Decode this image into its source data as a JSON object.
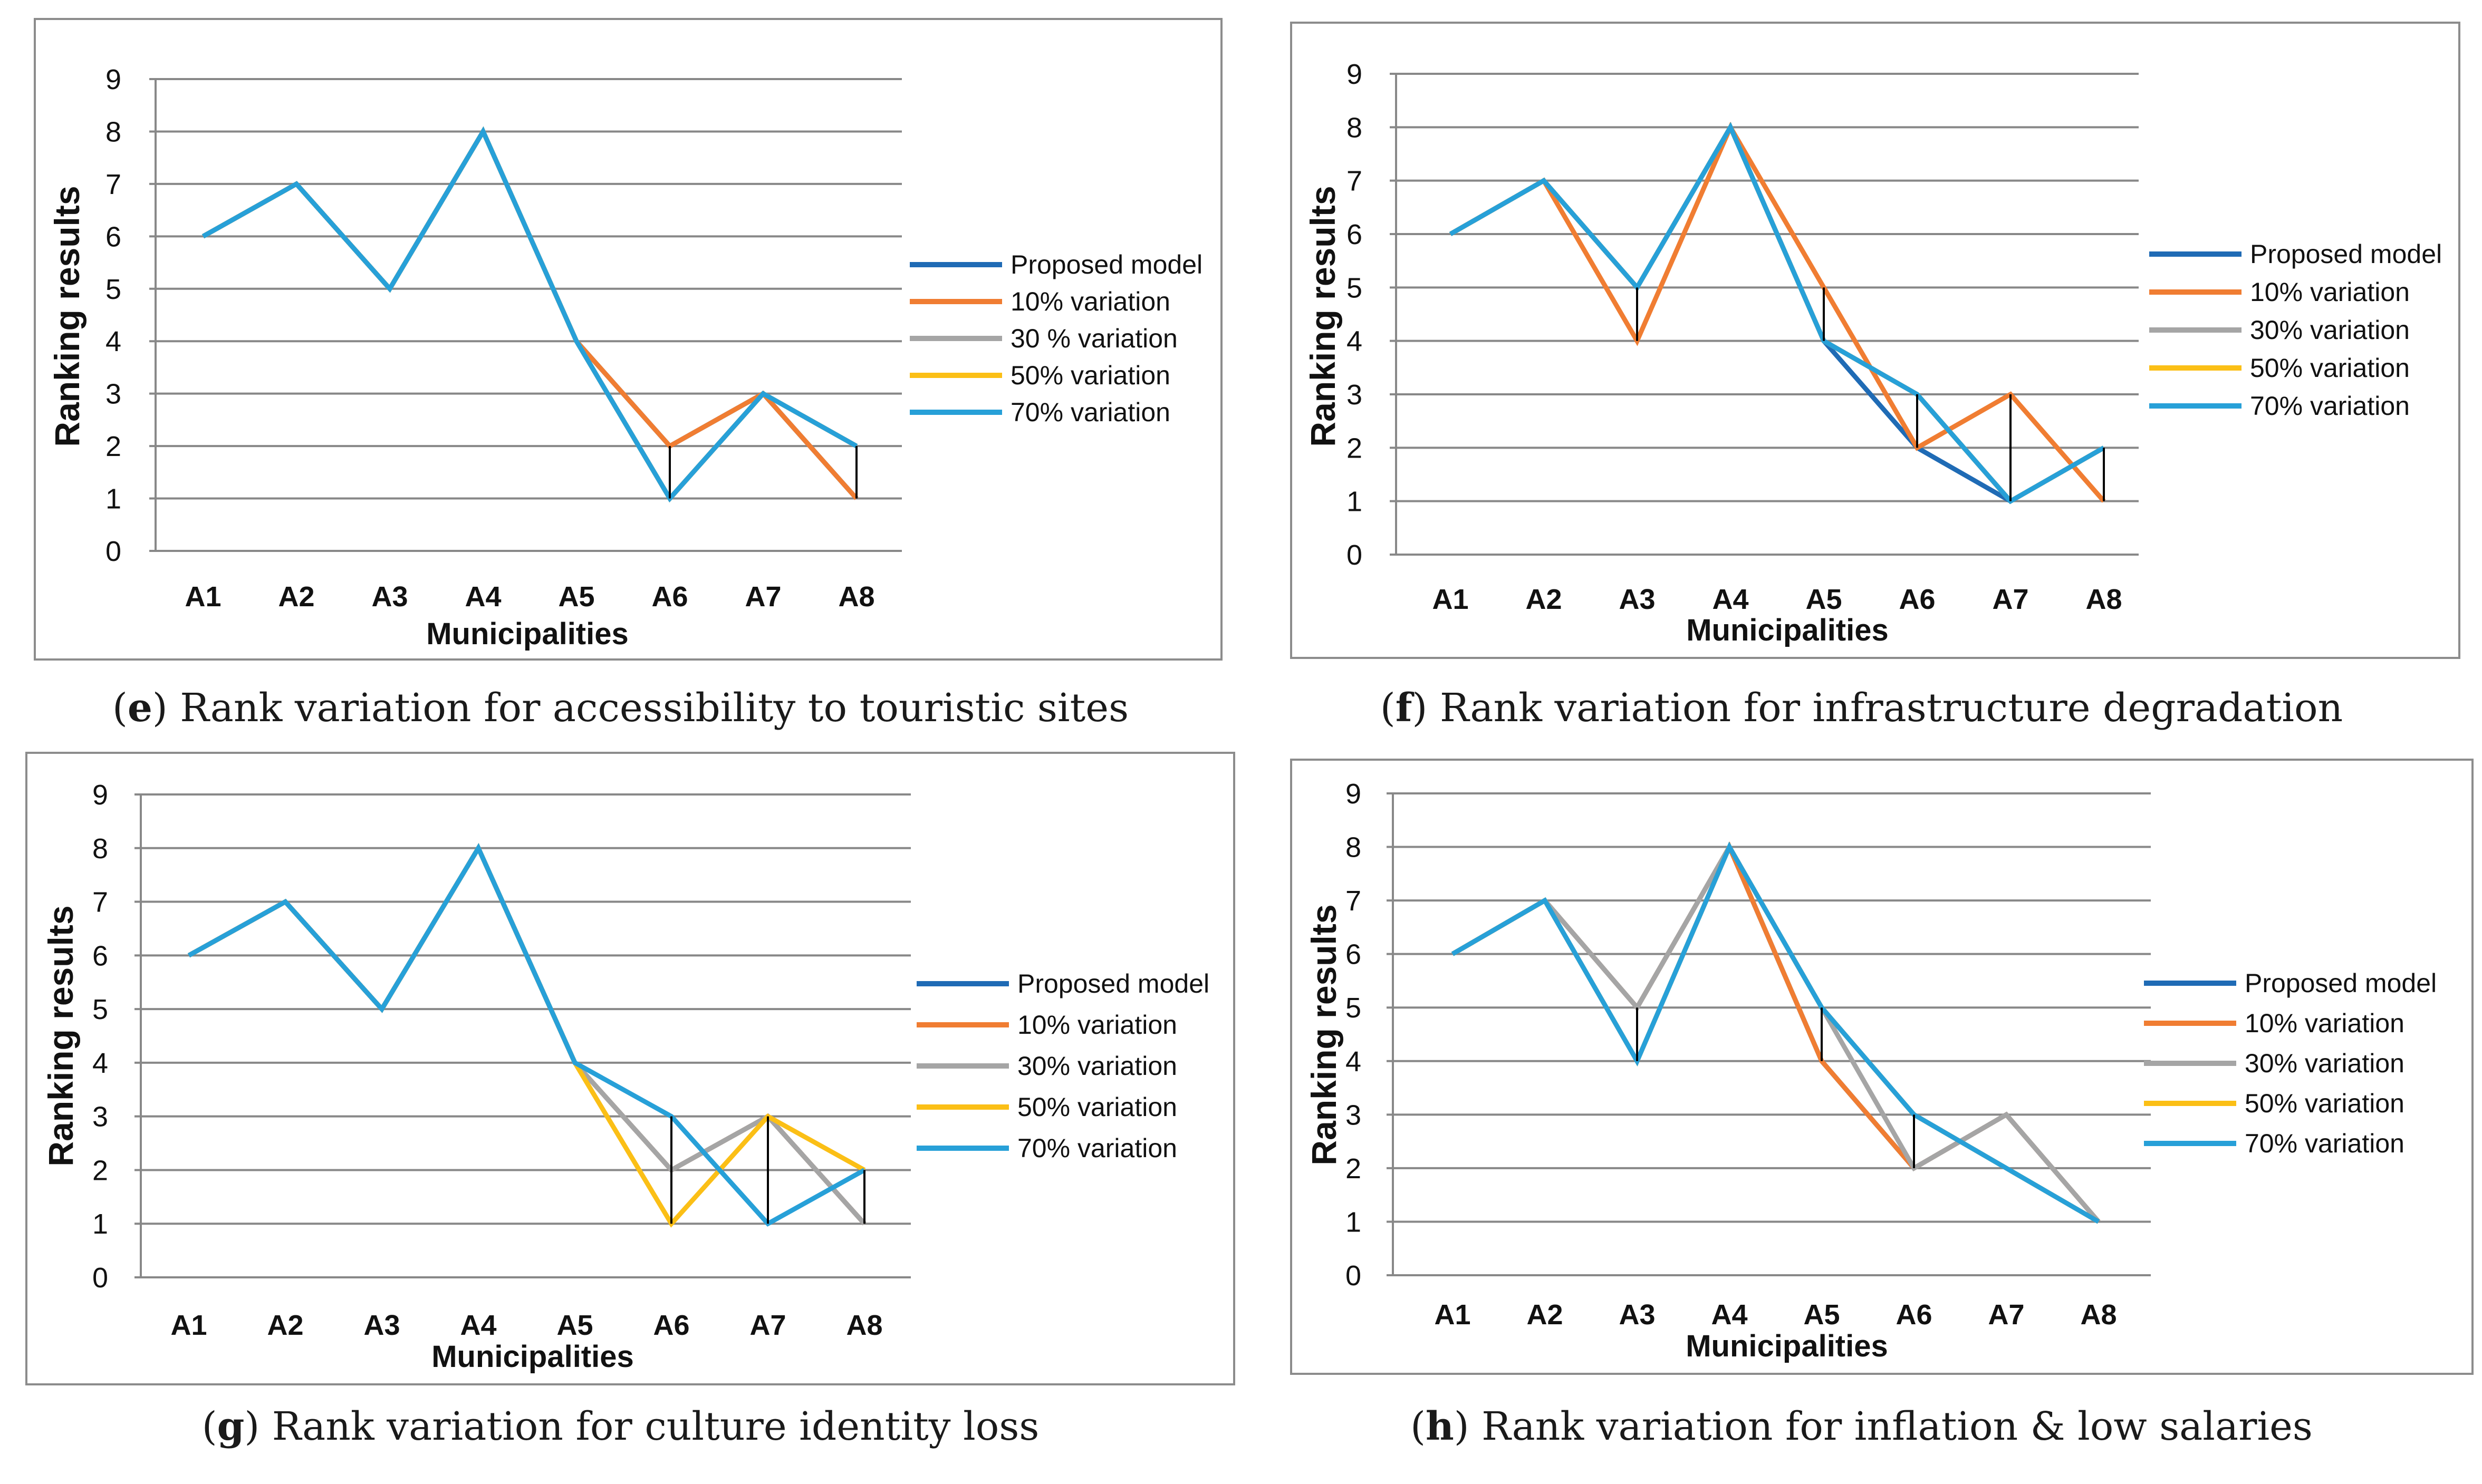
{
  "colors": {
    "proposed": "#1f6bb5",
    "v10": "#f07d32",
    "v30": "#a5a5a5",
    "v50": "#fbbf16",
    "v70": "#27a0d8",
    "grid": "#888888",
    "frame": "#8c8c8c"
  },
  "chart_data": [
    {
      "id": "e",
      "type": "line",
      "caption_letter": "e",
      "caption_text": ") Rank variation for accessibility to touristic sites",
      "xlabel": "Municipalities",
      "ylabel": "Ranking results",
      "ylim": [
        0,
        9
      ],
      "yticks": [
        "0",
        "1",
        "2",
        "3",
        "4",
        "5",
        "6",
        "7",
        "8",
        "9"
      ],
      "categories": [
        "A1",
        "A2",
        "A3",
        "A4",
        "A5",
        "A6",
        "A7",
        "A8"
      ],
      "legend_position": "right",
      "series": [
        {
          "name": "Proposed model",
          "color_key": "proposed",
          "values": [
            6,
            7,
            5,
            8,
            4,
            2,
            3,
            1
          ]
        },
        {
          "name": "10% variation",
          "color_key": "v10",
          "values": [
            6,
            7,
            5,
            8,
            4,
            2,
            3,
            1
          ]
        },
        {
          "name": "30 % variation",
          "color_key": "v30",
          "values": [
            6,
            7,
            5,
            8,
            4,
            1,
            3,
            2
          ]
        },
        {
          "name": "50% variation",
          "color_key": "v50",
          "values": [
            6,
            7,
            5,
            8,
            4,
            1,
            3,
            2
          ]
        },
        {
          "name": "70% variation",
          "color_key": "v70",
          "values": [
            6,
            7,
            5,
            8,
            4,
            1,
            3,
            2
          ]
        }
      ],
      "drop_lines": [
        5,
        7
      ]
    },
    {
      "id": "f",
      "type": "line",
      "caption_letter": "f",
      "caption_text": ") Rank variation for infrastructure degradation",
      "xlabel": "Municipalities",
      "ylabel": "Ranking results",
      "ylim": [
        0,
        9
      ],
      "yticks": [
        "0",
        "1",
        "2",
        "3",
        "4",
        "5",
        "6",
        "7",
        "8",
        "9"
      ],
      "categories": [
        "A1",
        "A2",
        "A3",
        "A4",
        "A5",
        "A6",
        "A7",
        "A8"
      ],
      "legend_position": "right",
      "series": [
        {
          "name": "Proposed model",
          "color_key": "proposed",
          "values": [
            6,
            7,
            5,
            8,
            4,
            2,
            1,
            2
          ]
        },
        {
          "name": "10% variation",
          "color_key": "v10",
          "values": [
            6,
            7,
            4,
            8,
            5,
            2,
            3,
            1
          ]
        },
        {
          "name": "30% variation",
          "color_key": "v30",
          "values": [
            6,
            7,
            5,
            8,
            4,
            3,
            1,
            2
          ]
        },
        {
          "name": "50% variation",
          "color_key": "v50",
          "values": [
            6,
            7,
            5,
            8,
            4,
            3,
            1,
            2
          ]
        },
        {
          "name": "70% variation",
          "color_key": "v70",
          "values": [
            6,
            7,
            5,
            8,
            4,
            3,
            1,
            2
          ]
        }
      ],
      "drop_lines": [
        2,
        4,
        5,
        6,
        7
      ]
    },
    {
      "id": "g",
      "type": "line",
      "caption_letter": "g",
      "caption_text": ") Rank variation for culture identity loss",
      "xlabel": "Municipalities",
      "ylabel": "Ranking results",
      "ylim": [
        0,
        9
      ],
      "yticks": [
        "0",
        "1",
        "2",
        "3",
        "4",
        "5",
        "6",
        "7",
        "8",
        "9"
      ],
      "categories": [
        "A1",
        "A2",
        "A3",
        "A4",
        "A5",
        "A6",
        "A7",
        "A8"
      ],
      "legend_position": "right",
      "series": [
        {
          "name": "Proposed model",
          "color_key": "proposed",
          "values": [
            6,
            7,
            5,
            8,
            4,
            2,
            3,
            1
          ]
        },
        {
          "name": "10% variation",
          "color_key": "v10",
          "values": [
            6,
            7,
            5,
            8,
            4,
            2,
            3,
            1
          ]
        },
        {
          "name": "30% variation",
          "color_key": "v30",
          "values": [
            6,
            7,
            5,
            8,
            4,
            2,
            3,
            1
          ]
        },
        {
          "name": "50% variation",
          "color_key": "v50",
          "values": [
            6,
            7,
            5,
            8,
            4,
            1,
            3,
            2
          ]
        },
        {
          "name": "70% variation",
          "color_key": "v70",
          "values": [
            6,
            7,
            5,
            8,
            4,
            3,
            1,
            2
          ]
        }
      ],
      "drop_lines": [
        5,
        6,
        7
      ]
    },
    {
      "id": "h",
      "type": "line",
      "caption_letter": "h",
      "caption_text": ") Rank variation for inflation & low salaries",
      "xlabel": "Municipalities",
      "ylabel": "Ranking results",
      "ylim": [
        0,
        9
      ],
      "yticks": [
        "0",
        "1",
        "2",
        "3",
        "4",
        "5",
        "6",
        "7",
        "8",
        "9"
      ],
      "categories": [
        "A1",
        "A2",
        "A3",
        "A4",
        "A5",
        "A6",
        "A7",
        "A8"
      ],
      "legend_position": "right",
      "series": [
        {
          "name": "Proposed model",
          "color_key": "proposed",
          "values": [
            6,
            7,
            5,
            8,
            4,
            2,
            3,
            1
          ]
        },
        {
          "name": "10% variation",
          "color_key": "v10",
          "values": [
            6,
            7,
            5,
            8,
            4,
            2,
            3,
            1
          ]
        },
        {
          "name": "30% variation",
          "color_key": "v30",
          "values": [
            6,
            7,
            5,
            8,
            5,
            2,
            3,
            1
          ]
        },
        {
          "name": "50% variation",
          "color_key": "v50",
          "values": [
            6,
            7,
            4,
            8,
            5,
            3,
            2,
            1
          ]
        },
        {
          "name": "70% variation",
          "color_key": "v70",
          "values": [
            6,
            7,
            4,
            8,
            5,
            3,
            2,
            1
          ]
        }
      ],
      "drop_lines": [
        2,
        4,
        5
      ]
    }
  ]
}
